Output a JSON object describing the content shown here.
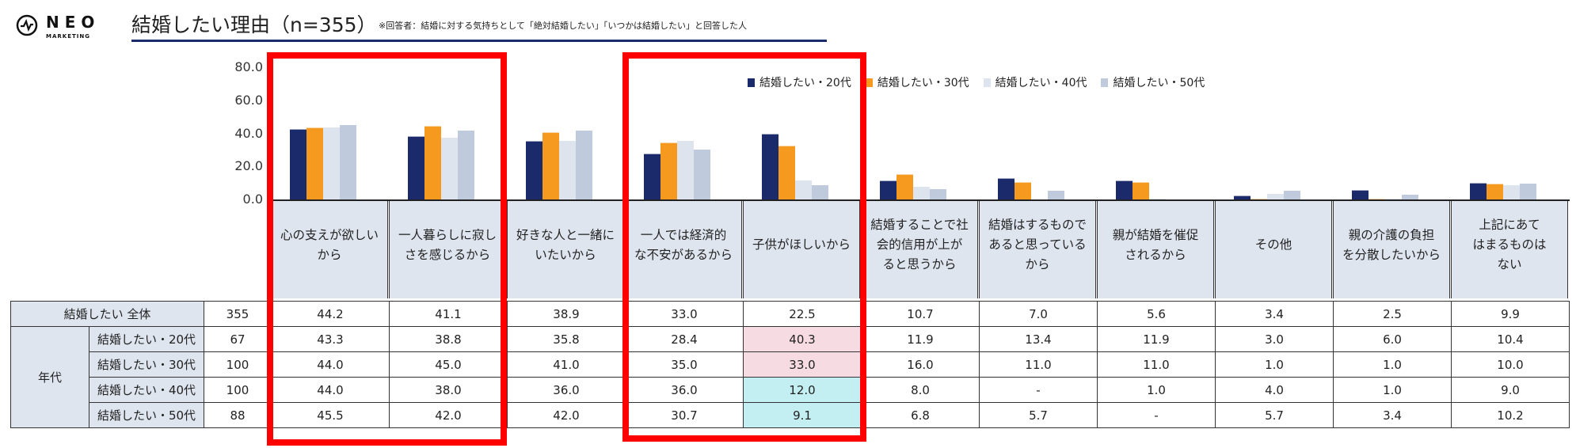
{
  "logo": {
    "name": "NEO",
    "sub": "MARKETING"
  },
  "header": {
    "title": "結婚したい理由（n=355）",
    "subtitle": "※回答者：結婚に対する気持ちとして「絶対結婚したい」「いつかは結婚したい」と回答した人"
  },
  "colors": {
    "s20": "#1b2a6b",
    "s30": "#f59a1f",
    "s40": "#dde4ee",
    "s50": "#bfcbdd",
    "highlight_red": "#ff0000",
    "pink": "#f7dbe3",
    "cyan": "#c3eef2"
  },
  "chart_data": {
    "type": "bar",
    "title": "結婚したい理由（n=355）",
    "ylim": [
      0,
      80
    ],
    "yticks": [
      "80.0",
      "60.0",
      "40.0",
      "20.0",
      "0.0"
    ],
    "ytick_values": [
      80,
      60,
      40,
      20,
      0
    ],
    "legend_position": "top-right",
    "categories": [
      "心の支えが欲しい\nから",
      "一人暮らしに寂し\nさを感じるから",
      "好きな人と一緒に\nいたいから",
      "一人では経済的\nな不安があるから",
      "子供がほしいから",
      "結婚することで社\n会的信用が上が\nると思うから",
      "結婚はするもので\nあると思っている\nから",
      "親が結婚を催促\nされるから",
      "その他",
      "親の介護の負担\nを分散したいから",
      "上記にあて\nはまるものは\nない"
    ],
    "series": [
      {
        "name": "結婚したい・20代",
        "values": [
          43.3,
          38.8,
          35.8,
          28.4,
          40.3,
          11.9,
          13.4,
          11.9,
          3.0,
          6.0,
          10.4
        ]
      },
      {
        "name": "結婚したい・30代",
        "values": [
          44.0,
          45.0,
          41.0,
          35.0,
          33.0,
          16.0,
          11.0,
          11.0,
          1.0,
          1.0,
          10.0
        ]
      },
      {
        "name": "結婚したい・40代",
        "values": [
          44.0,
          38.0,
          36.0,
          36.0,
          12.0,
          8.0,
          0,
          1.0,
          4.0,
          1.0,
          9.0
        ]
      },
      {
        "name": "結婚したい・50代",
        "values": [
          45.5,
          42.0,
          42.0,
          30.7,
          9.1,
          6.8,
          5.7,
          0,
          5.7,
          3.4,
          10.2
        ]
      }
    ]
  },
  "table": {
    "group_label": "年代",
    "rows": [
      {
        "label": "結婚したい 全体",
        "n": "355",
        "values": [
          "44.2",
          "41.1",
          "38.9",
          "33.0",
          "22.5",
          "10.7",
          "7.0",
          "5.6",
          "3.4",
          "2.5",
          "9.9"
        ]
      },
      {
        "label": "結婚したい・20代",
        "n": "67",
        "values": [
          "43.3",
          "38.8",
          "35.8",
          "28.4",
          "40.3",
          "11.9",
          "13.4",
          "11.9",
          "3.0",
          "6.0",
          "10.4"
        ]
      },
      {
        "label": "結婚したい・30代",
        "n": "100",
        "values": [
          "44.0",
          "45.0",
          "41.0",
          "35.0",
          "33.0",
          "16.0",
          "11.0",
          "11.0",
          "1.0",
          "1.0",
          "10.0"
        ]
      },
      {
        "label": "結婚したい・40代",
        "n": "100",
        "values": [
          "44.0",
          "38.0",
          "36.0",
          "36.0",
          "12.0",
          "8.0",
          "-",
          "1.0",
          "4.0",
          "1.0",
          "9.0"
        ]
      },
      {
        "label": "結婚したい・50代",
        "n": "88",
        "values": [
          "45.5",
          "42.0",
          "42.0",
          "30.7",
          "9.1",
          "6.8",
          "5.7",
          "-",
          "5.7",
          "3.4",
          "10.2"
        ]
      }
    ],
    "highlights": {
      "pink": [
        [
          1,
          4
        ],
        [
          2,
          4
        ]
      ],
      "cyan": [
        [
          3,
          4
        ],
        [
          4,
          4
        ]
      ]
    }
  }
}
